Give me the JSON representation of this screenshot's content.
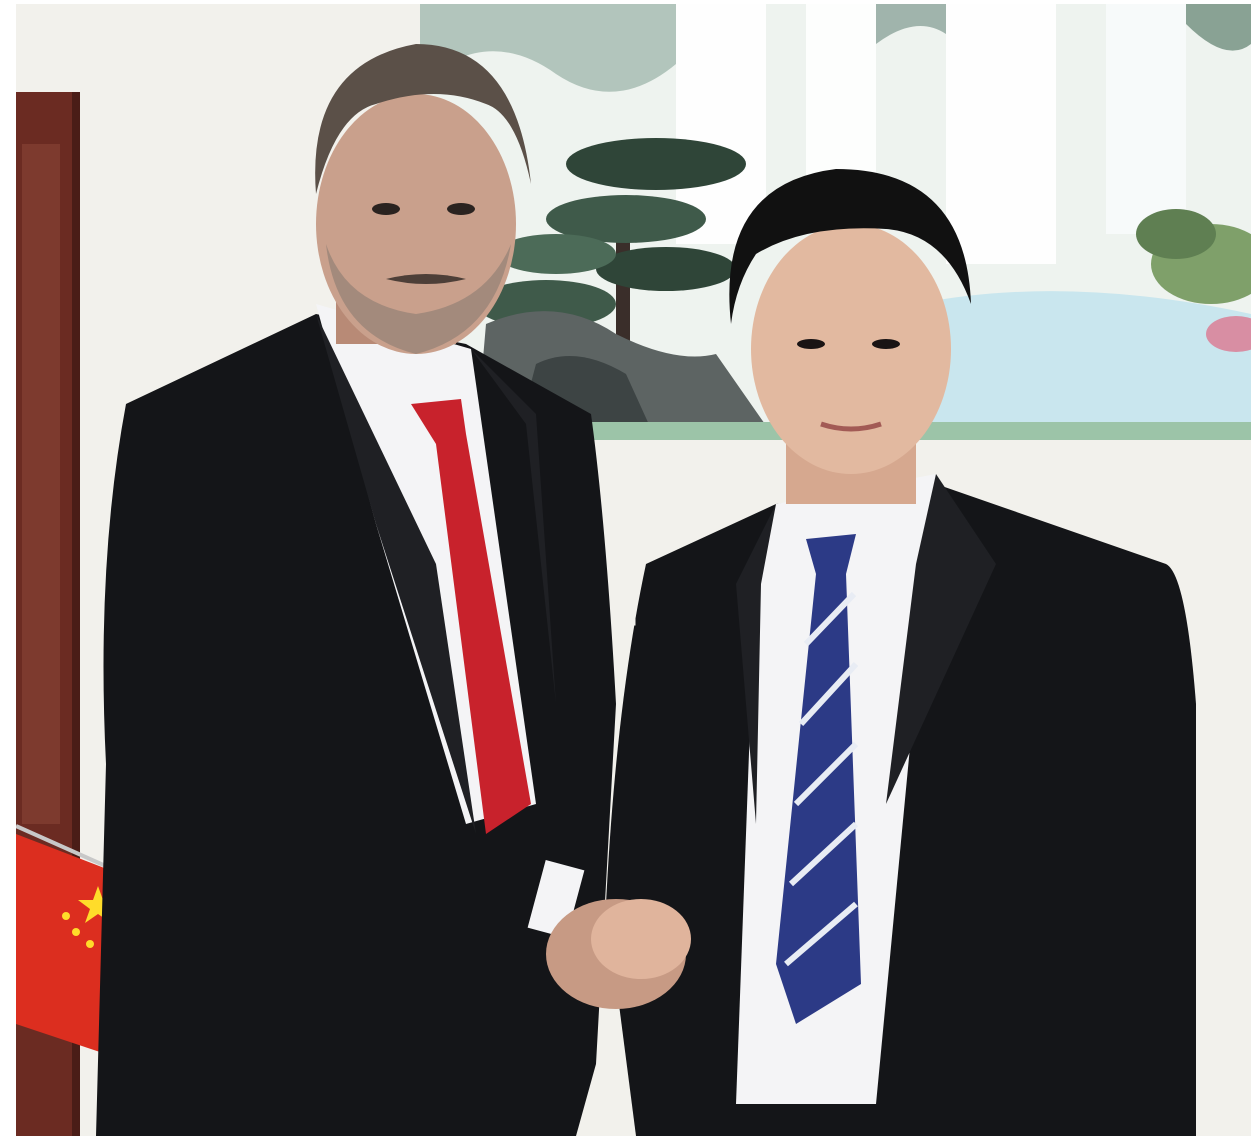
{
  "photo": {
    "subjects": [
      "man-left",
      "man-right"
    ],
    "colors": {
      "wall": "#f2f1ec",
      "suit": "#141518",
      "shirt": "#f4f4f6",
      "red_tie": "#c8222c",
      "navy_tie": "#2c3a86",
      "tie_stripe": "#e8ecf4",
      "skin_left": "#c9a08c",
      "skin_right": "#e2b9a0",
      "hair_left": "#5b5048",
      "hair_right": "#111111",
      "flag_red": "#dc2e1f",
      "flag_star": "#ffdc2a",
      "wood_frame": "#6b2b22",
      "painting_sky": "#eef3ef",
      "painting_tree": "#3f5a4a",
      "painting_water": "#c9e6ee"
    }
  }
}
